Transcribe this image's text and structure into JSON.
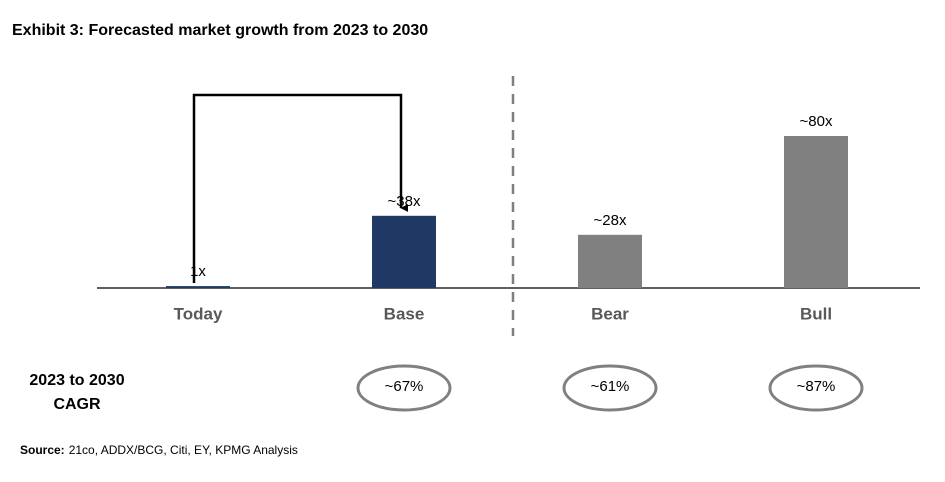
{
  "chart_data": {
    "type": "bar",
    "title": "Exhibit 3: Forecasted market growth from 2023 to 2030",
    "categories": [
      "Today",
      "Base",
      "Bear",
      "Bull"
    ],
    "values": [
      1,
      38,
      28,
      80
    ],
    "value_labels": [
      "1x",
      "~38x",
      "~28x",
      "~80x"
    ],
    "colors": [
      "#1f3864",
      "#1f3864",
      "#808080",
      "#808080"
    ],
    "cagr": {
      "label_lines": [
        "2023 to 2030",
        "CAGR"
      ],
      "values": [
        null,
        67,
        61,
        87
      ],
      "value_labels": [
        null,
        "~67%",
        "~61%",
        "~87%"
      ]
    },
    "source": {
      "label": "Source:",
      "text": "21co, ADDX/BCG, Citi, EY, KPMG Analysis"
    }
  }
}
